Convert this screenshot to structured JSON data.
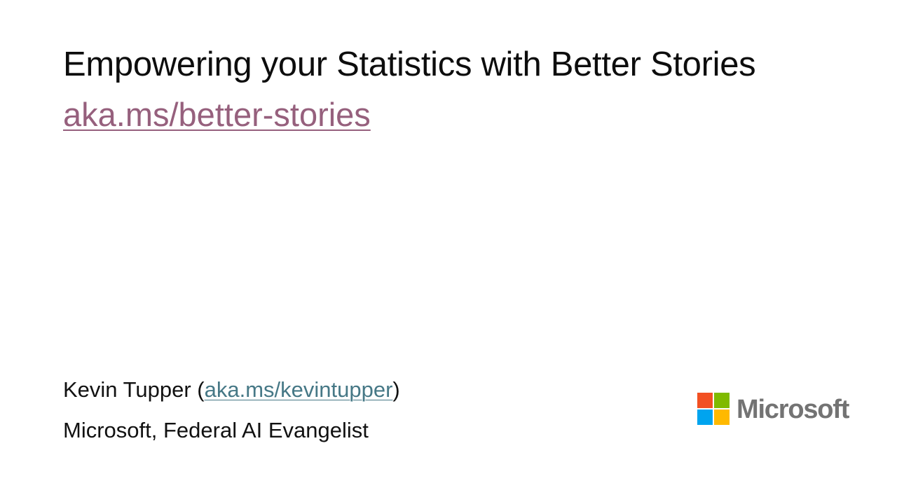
{
  "slide": {
    "title": "Empowering your Statistics with Better Stories",
    "title_link": "aka.ms/better-stories",
    "presenter": {
      "name_prefix": "Kevin Tupper (",
      "link": "aka.ms/kevintupper",
      "name_suffix": ")"
    },
    "affiliation": "Microsoft,  Federal AI Evangelist"
  },
  "logo": {
    "wordmark": "Microsoft",
    "wordmark_color": "#737373",
    "squares": {
      "top_left": "#f25022",
      "top_right": "#7fba00",
      "bottom_left": "#00a4ef",
      "bottom_right": "#ffb900"
    }
  },
  "colors": {
    "title_link": "#96607d",
    "presenter_link": "#467886",
    "text": "#111111"
  }
}
